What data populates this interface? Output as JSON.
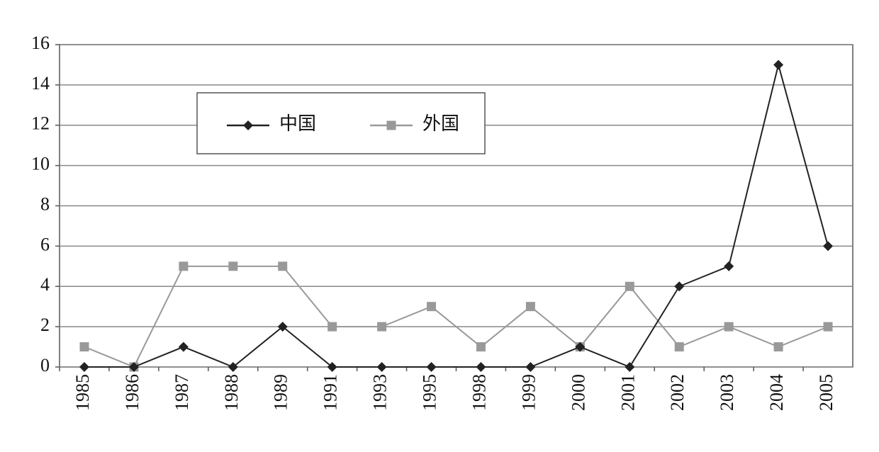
{
  "chart_data": {
    "type": "line",
    "categories": [
      "1985",
      "1986",
      "1987",
      "1988",
      "1989",
      "1991",
      "1993",
      "1995",
      "1998",
      "1999",
      "2000",
      "2001",
      "2002",
      "2003",
      "2004",
      "2005"
    ],
    "series": [
      {
        "name": "中国",
        "color": "#222222",
        "marker": "diamond",
        "values": [
          0,
          0,
          1,
          0,
          2,
          0,
          0,
          0,
          0,
          0,
          1,
          0,
          4,
          5,
          15,
          6
        ]
      },
      {
        "name": "外国",
        "color": "#999999",
        "marker": "square",
        "values": [
          1,
          0,
          5,
          5,
          5,
          2,
          2,
          3,
          1,
          3,
          1,
          4,
          1,
          2,
          1,
          2
        ]
      }
    ],
    "ylim": [
      0,
      16
    ],
    "yticks": [
      0,
      2,
      4,
      6,
      8,
      10,
      12,
      14,
      16
    ],
    "grid": true
  }
}
